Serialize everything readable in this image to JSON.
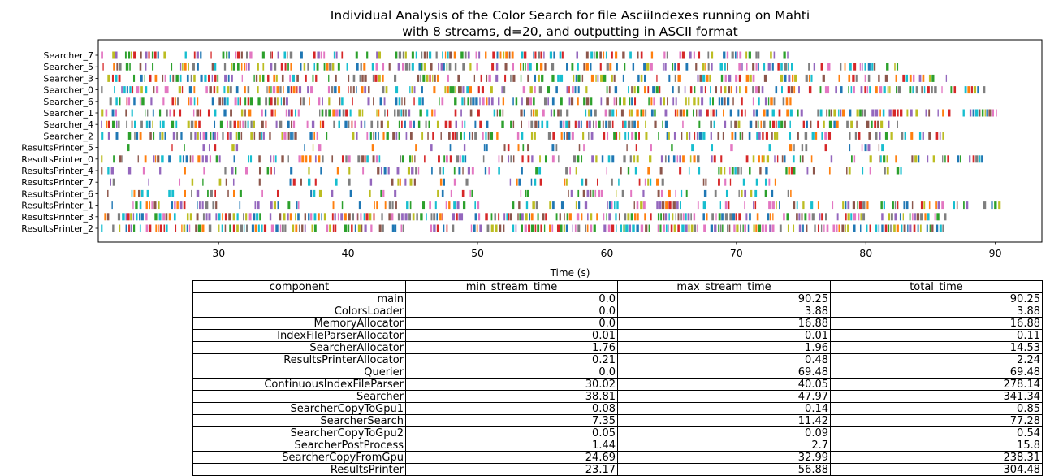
{
  "chart_data": {
    "type": "broken-barh",
    "title": [
      "Individual Analysis of the Color Search for file AsciiIndexes running on Mahti",
      "with 8 streams, d=20, and outputting in ASCII format"
    ],
    "xlabel": "Time (s)",
    "ylabel": "",
    "xlim": [
      20.7,
      93.6
    ],
    "xticks": [
      30,
      40,
      50,
      60,
      70,
      80,
      90
    ],
    "grid": false,
    "legend": "none",
    "colors": [
      "#1f77b4",
      "#ff7f0e",
      "#2ca02c",
      "#d62728",
      "#9467bd",
      "#8c564b",
      "#e377c2",
      "#7f7f7f",
      "#bcbd22",
      "#17becf"
    ],
    "rows": [
      {
        "label": "Searcher_7",
        "start": 20.9,
        "end": 74.0,
        "density": 0.55
      },
      {
        "label": "Searcher_5",
        "start": 20.9,
        "end": 82.7,
        "density": 0.55
      },
      {
        "label": "Searcher_3",
        "start": 20.9,
        "end": 86.3,
        "density": 0.55
      },
      {
        "label": "Searcher_0",
        "start": 20.9,
        "end": 89.6,
        "density": 0.55
      },
      {
        "label": "Searcher_6",
        "start": 20.9,
        "end": 74.2,
        "density": 0.55
      },
      {
        "label": "Searcher_1",
        "start": 20.9,
        "end": 90.2,
        "density": 0.55
      },
      {
        "label": "Searcher_4",
        "start": 20.9,
        "end": 82.6,
        "density": 0.55
      },
      {
        "label": "Searcher_2",
        "start": 20.9,
        "end": 86.0,
        "density": 0.55
      },
      {
        "label": "ResultsPrinter_5",
        "start": 20.9,
        "end": 82.6,
        "density": 0.2
      },
      {
        "label": "ResultsPrinter_0",
        "start": 20.9,
        "end": 89.6,
        "density": 0.45
      },
      {
        "label": "ResultsPrinter_4",
        "start": 20.9,
        "end": 82.7,
        "density": 0.3
      },
      {
        "label": "ResultsPrinter_7",
        "start": 20.9,
        "end": 74.0,
        "density": 0.25
      },
      {
        "label": "ResultsPrinter_6",
        "start": 20.9,
        "end": 74.2,
        "density": 0.3
      },
      {
        "label": "ResultsPrinter_1",
        "start": 20.9,
        "end": 90.25,
        "density": 0.4
      },
      {
        "label": "ResultsPrinter_3",
        "start": 20.9,
        "end": 86.3,
        "density": 0.7
      },
      {
        "label": "ResultsPrinter_2",
        "start": 20.9,
        "end": 86.1,
        "density": 0.7
      }
    ]
  },
  "table": {
    "headers": [
      "component",
      "min_stream_time",
      "max_stream_time",
      "total_time"
    ],
    "rows": [
      [
        "main",
        "0.0",
        "90.25",
        "90.25"
      ],
      [
        "ColorsLoader",
        "0.0",
        "3.88",
        "3.88"
      ],
      [
        "MemoryAllocator",
        "0.0",
        "16.88",
        "16.88"
      ],
      [
        "IndexFileParserAllocator",
        "0.01",
        "0.01",
        "0.11"
      ],
      [
        "SearcherAllocator",
        "1.76",
        "1.96",
        "14.53"
      ],
      [
        "ResultsPrinterAllocator",
        "0.21",
        "0.48",
        "2.24"
      ],
      [
        "Querier",
        "0.0",
        "69.48",
        "69.48"
      ],
      [
        "ContinuousIndexFileParser",
        "30.02",
        "40.05",
        "278.14"
      ],
      [
        "Searcher",
        "38.81",
        "47.97",
        "341.34"
      ],
      [
        "SearcherCopyToGpu1",
        "0.08",
        "0.14",
        "0.85"
      ],
      [
        "SearcherSearch",
        "7.35",
        "11.42",
        "77.28"
      ],
      [
        "SearcherCopyToGpu2",
        "0.05",
        "0.09",
        "0.54"
      ],
      [
        "SearcherPostProcess",
        "1.44",
        "2.7",
        "15.8"
      ],
      [
        "SearcherCopyFromGpu",
        "24.69",
        "32.99",
        "238.31"
      ],
      [
        "ResultsPrinter",
        "23.17",
        "56.88",
        "304.48"
      ]
    ]
  }
}
